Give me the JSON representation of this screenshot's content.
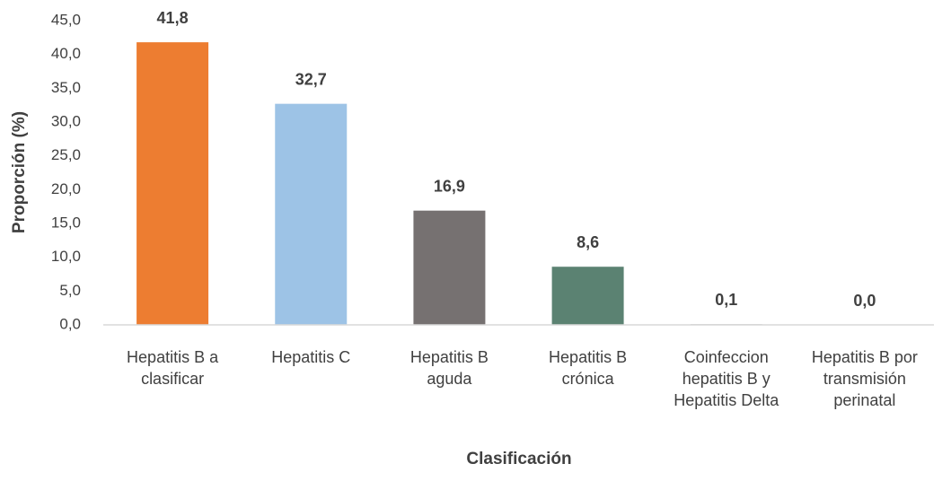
{
  "chart_data": {
    "type": "bar",
    "categories": [
      "Hepatitis B a clasificar",
      "Hepatitis C",
      "Hepatitis B aguda",
      "Hepatitis B crónica",
      "Coinfeccion hepatitis B y Hepatitis Delta",
      "Hepatitis B por transmisión perinatal"
    ],
    "values": [
      41.8,
      32.7,
      16.9,
      8.6,
      0.1,
      0.0
    ],
    "value_labels": [
      "41,8",
      "32,7",
      "16,9",
      "8,6",
      "0,1",
      "0,0"
    ],
    "colors": [
      "#ed7d31",
      "#9dc3e6",
      "#767171",
      "#5b8272",
      "#a5a5a5",
      "#a5a5a5"
    ],
    "ylim": [
      0,
      45
    ],
    "yticks": [
      {
        "value": 0,
        "label": "0,0"
      },
      {
        "value": 5,
        "label": "5,0"
      },
      {
        "value": 10,
        "label": "10,0"
      },
      {
        "value": 15,
        "label": "15,0"
      },
      {
        "value": 20,
        "label": "20,0"
      },
      {
        "value": 25,
        "label": "25,0"
      },
      {
        "value": 30,
        "label": "30,0"
      },
      {
        "value": 35,
        "label": "35,0"
      },
      {
        "value": 40,
        "label": "40,0"
      },
      {
        "value": 45,
        "label": "45,0"
      }
    ],
    "y_axis_label": "Proporción (%)",
    "x_axis_label": "Clasificación",
    "grid": false
  }
}
